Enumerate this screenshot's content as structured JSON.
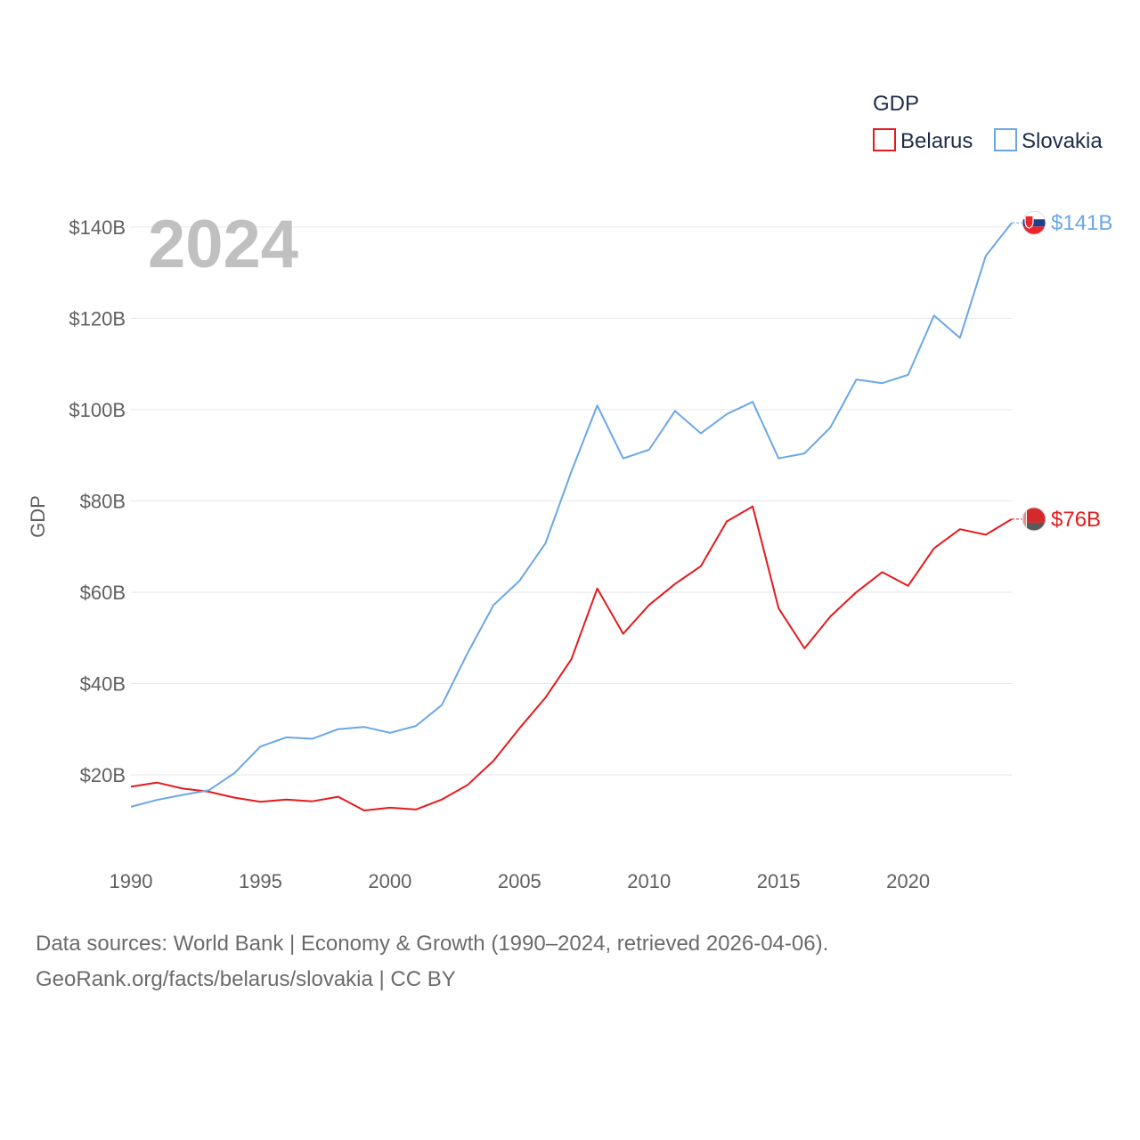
{
  "chart_data": {
    "type": "line",
    "title": "GDP",
    "ylabel": "GDP",
    "xlabel": "",
    "current_year": "2024",
    "xlim": [
      1990,
      2024
    ],
    "ylim": [
      0,
      150
    ],
    "x_ticks": [
      1990,
      1995,
      2000,
      2005,
      2010,
      2015,
      2020
    ],
    "x_tick_labels": [
      "1990",
      "1995",
      "2000",
      "2005",
      "2010",
      "2015",
      "2020"
    ],
    "y_ticks": [
      20,
      40,
      60,
      80,
      100,
      120,
      140
    ],
    "y_tick_labels": [
      "$20B",
      "$40B",
      "$60B",
      "$80B",
      "$100B",
      "$120B",
      "$140B"
    ],
    "grid": true,
    "legend_position": "top-right",
    "x": [
      1990,
      1991,
      1992,
      1993,
      1994,
      1995,
      1996,
      1997,
      1998,
      1999,
      2000,
      2001,
      2002,
      2003,
      2004,
      2005,
      2006,
      2007,
      2008,
      2009,
      2010,
      2011,
      2012,
      2013,
      2014,
      2015,
      2016,
      2017,
      2018,
      2019,
      2020,
      2021,
      2022,
      2023,
      2024
    ],
    "series": [
      {
        "name": "Belarus",
        "color": "#e41a1c",
        "end_label": "$76B",
        "flag": "belarus-flag",
        "values": [
          17.4,
          18.3,
          17.0,
          16.3,
          15.0,
          14.1,
          14.6,
          14.2,
          15.2,
          12.2,
          12.8,
          12.4,
          14.6,
          17.8,
          23.1,
          30.2,
          36.9,
          45.3,
          60.8,
          50.9,
          57.2,
          61.8,
          65.7,
          75.5,
          78.8,
          56.5,
          47.7,
          54.7,
          60.0,
          64.4,
          61.4,
          69.6,
          73.8,
          72.6,
          76.0
        ]
      },
      {
        "name": "Slovakia",
        "color": "#6aa7e6",
        "end_label": "$141B",
        "flag": "slovakia-flag",
        "values": [
          13.0,
          14.5,
          15.6,
          16.6,
          20.4,
          26.2,
          28.2,
          27.9,
          30.0,
          30.5,
          29.2,
          30.7,
          35.3,
          46.7,
          57.2,
          62.5,
          70.7,
          86.4,
          100.9,
          89.3,
          91.2,
          99.7,
          94.8,
          99.0,
          101.7,
          89.3,
          90.4,
          96.1,
          106.6,
          105.8,
          107.6,
          120.6,
          115.7,
          133.7,
          140.9
        ]
      }
    ]
  },
  "footer": {
    "line1": "Data sources: World Bank | Economy & Growth (1990–2024, retrieved 2026-04-06).",
    "line2": "GeoRank.org/facts/belarus/slovakia | CC BY"
  }
}
